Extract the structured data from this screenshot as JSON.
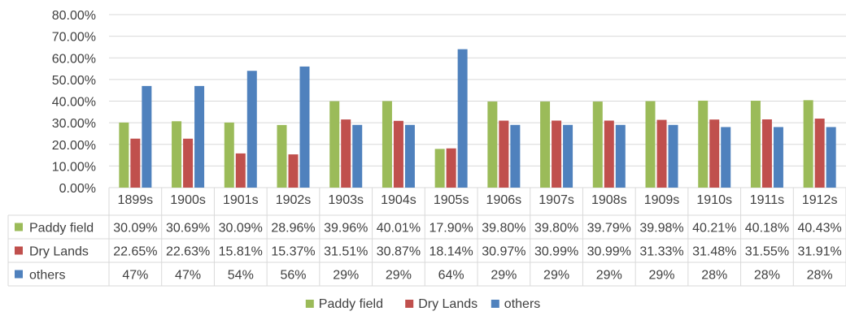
{
  "chart_data": {
    "type": "bar",
    "title": "",
    "xlabel": "",
    "ylabel": "",
    "ylim": [
      0,
      80
    ],
    "y_ticks": [
      "0.00%",
      "10.00%",
      "20.00%",
      "30.00%",
      "40.00%",
      "50.00%",
      "60.00%",
      "70.00%",
      "80.00%"
    ],
    "grid": true,
    "legend_position": "bottom",
    "categories": [
      "1899s",
      "1900s",
      "1901s",
      "1902s",
      "1903s",
      "1904s",
      "1905s",
      "1906s",
      "1907s",
      "1908s",
      "1909s",
      "1910s",
      "1911s",
      "1912s"
    ],
    "series": [
      {
        "name": "Paddy field",
        "color": "#9bbb59",
        "values": [
          30.09,
          30.69,
          30.09,
          28.96,
          39.96,
          40.01,
          17.9,
          39.8,
          39.8,
          39.79,
          39.98,
          40.21,
          40.18,
          40.43
        ],
        "table_labels": [
          "30.09%",
          "30.69%",
          "30.09%",
          "28.96%",
          "39.96%",
          "40.01%",
          "17.90%",
          "39.80%",
          "39.80%",
          "39.79%",
          "39.98%",
          "40.21%",
          "40.18%",
          "40.43%"
        ]
      },
      {
        "name": "Dry Lands",
        "color": "#c0504d",
        "values": [
          22.65,
          22.63,
          15.81,
          15.37,
          31.51,
          30.87,
          18.14,
          30.97,
          30.99,
          30.99,
          31.33,
          31.48,
          31.55,
          31.91
        ],
        "table_labels": [
          "22.65%",
          "22.63%",
          "15.81%",
          "15.37%",
          "31.51%",
          "30.87%",
          "18.14%",
          "30.97%",
          "30.99%",
          "30.99%",
          "31.33%",
          "31.48%",
          "31.55%",
          "31.91%"
        ]
      },
      {
        "name": "others",
        "color": "#4f81bd",
        "values": [
          47,
          47,
          54,
          56,
          29,
          29,
          64,
          29,
          29,
          29,
          29,
          28,
          28,
          28
        ],
        "table_labels": [
          "47%",
          "47%",
          "54%",
          "56%",
          "29%",
          "29%",
          "64%",
          "29%",
          "29%",
          "29%",
          "29%",
          "28%",
          "28%",
          "28%"
        ]
      }
    ]
  }
}
